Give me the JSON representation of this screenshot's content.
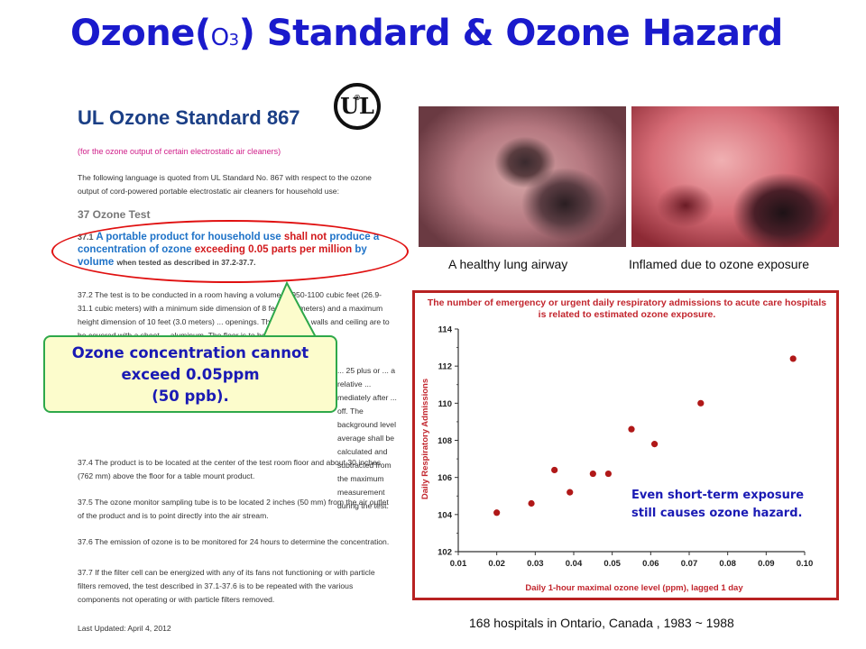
{
  "slide": {
    "title_main": "Ozone(",
    "title_o": "O",
    "title_sub": "3",
    "title_rest": ") Standard & Ozone Hazard"
  },
  "document": {
    "heading": "UL Ozone Standard 867",
    "logo_text": "UL",
    "logo_reg": "®",
    "scope": "(for the ozone output of certain electrostatic air cleaners)",
    "intro": "The following language is quoted from UL Standard No. 867 with respect to the ozone output of cord-powered portable electrostatic air cleaners for household use:",
    "section_title": "37 Ozone Test",
    "s371_num": "37.1",
    "s371_a": "A portable product for household use",
    "s371_b": "shall not",
    "s371_c": "produce a concentration of ozone",
    "s371_d": "exceeding 0.05 parts per million",
    "s371_e": "by volume",
    "s371_f": "when tested as described in 37.2-37.7.",
    "s372": "37.2 The test is to be conducted in a room having a volume of 950-1100 cubic feet (26.9-31.1 cubic meters) with a minimum side dimension of 8 feet (2.4 meters) and a maximum height dimension of 10 feet (3.0 meters) ... openings. The test room walls and ceiling are to be covered with a sheet ... aluminum. The floor is to be",
    "s373": "... 25 plus or ... a relative ... mediately after ... off. The background level average shall be calculated and subtracted from the maximum measurement during the test.",
    "s374": "37.4 The product is to be located at the center of the test room floor and about 30 inches (762 mm) above the floor for a table mount product.",
    "s375": "37.5 The ozone monitor sampling tube is to be located 2 inches (50 mm) from the air outlet of the product and is to point directly into the air stream.",
    "s376": "37.6 The emission of ozone is to be monitored for 24 hours to determine the concentration.",
    "s377": "37.7 If the filter cell can be energized with any of its fans not functioning or with particle filters removed, the test described in 37.1-37.6 is to be repeated with the various components not operating or with particle filters removed.",
    "updated": "Last Updated: April 4, 2012"
  },
  "callout": {
    "line1": "Ozone concentration cannot",
    "line2": "exceed 0.05ppm",
    "line3": "(50 ppb)."
  },
  "photos": {
    "caption_left": "A healthy lung airway",
    "caption_right": "Inflamed due to ozone exposure"
  },
  "chart_note": {
    "line1": "Even short-term exposure",
    "line2": "still causes ozone hazard."
  },
  "footer": "168 hospitals in Ontario, Canada , 1983 ~ 1988",
  "colors": {
    "title_blue": "#1a1acc",
    "standard_blue": "#1f73c8",
    "alert_red": "#d2191c",
    "callout_fill": "#fcfccc",
    "callout_border": "#2ea84a",
    "chart_border": "#b82222",
    "point_color": "#b01818"
  },
  "chart_data": {
    "type": "scatter",
    "title": "The number of emergency or urgent daily respiratory admissions to acute care hospitals is related to estimated ozone exposure.",
    "xlabel": "Daily 1-hour maximal ozone level (ppm), lagged 1 day",
    "ylabel": "Daily Respiratory Admissions",
    "xlim": [
      0.01,
      0.1
    ],
    "ylim": [
      102,
      114
    ],
    "xticks": [
      "0.01",
      "0.02",
      "0.03",
      "0.04",
      "0.05",
      "0.06",
      "0.07",
      "0.08",
      "0.09",
      "0.10"
    ],
    "yticks": [
      "102",
      "104",
      "106",
      "108",
      "110",
      "112",
      "114"
    ],
    "grid": false,
    "points": [
      {
        "x": 0.02,
        "y": 104.1
      },
      {
        "x": 0.029,
        "y": 104.6
      },
      {
        "x": 0.035,
        "y": 106.4
      },
      {
        "x": 0.039,
        "y": 105.2
      },
      {
        "x": 0.045,
        "y": 106.2
      },
      {
        "x": 0.049,
        "y": 106.2
      },
      {
        "x": 0.055,
        "y": 108.6
      },
      {
        "x": 0.061,
        "y": 107.8
      },
      {
        "x": 0.073,
        "y": 110.0
      },
      {
        "x": 0.097,
        "y": 112.4
      }
    ]
  }
}
